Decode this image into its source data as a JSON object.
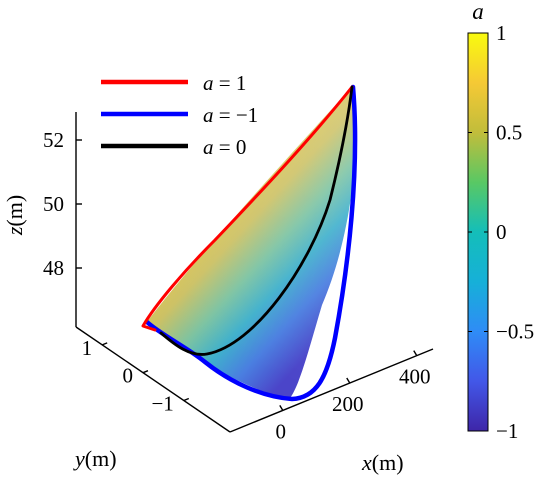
{
  "chart_data": {
    "type": "surface3d",
    "colorbar": {
      "title": "a",
      "min": -1,
      "max": 1,
      "ticks": [
        1,
        0.5,
        0,
        -0.5,
        -1
      ],
      "tick_labels": [
        "1",
        "0.5",
        "0",
        "−0.5",
        "−1"
      ],
      "colormap": "parula"
    },
    "legend": {
      "placement": "top-left",
      "entries": [
        {
          "label": "a = 1",
          "color": "#ff0000"
        },
        {
          "label": "a = −1",
          "color": "#0000ff"
        },
        {
          "label": "a = 0",
          "color": "#000000"
        }
      ]
    },
    "axes": {
      "x": {
        "label": "x(m)",
        "ticks": [
          0,
          200,
          400
        ],
        "tick_labels": [
          "0",
          "200",
          "400"
        ]
      },
      "y": {
        "label": "y(m)",
        "ticks": [
          1,
          0,
          -1
        ],
        "tick_labels": [
          "1",
          "0",
          "−1"
        ]
      },
      "z": {
        "label": "z(m)",
        "ticks": [
          52,
          50,
          48
        ],
        "tick_labels": [
          "52",
          "50",
          "48"
        ]
      }
    },
    "series": [
      {
        "name": "a = 1",
        "a": 1,
        "color": "#ff0000"
      },
      {
        "name": "a = −1",
        "a": -1,
        "color": "#0000ff"
      },
      {
        "name": "a = 0",
        "a": 0,
        "color": "#000000"
      }
    ]
  }
}
